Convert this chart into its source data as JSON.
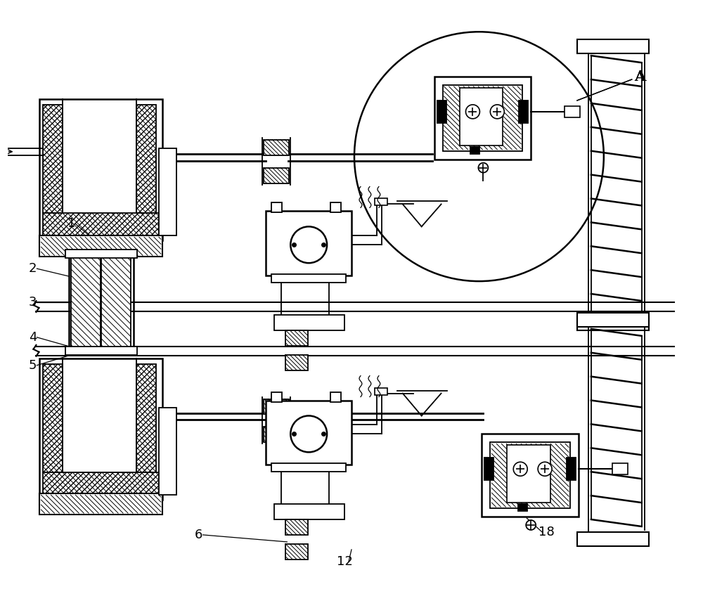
{
  "bg_color": "#ffffff",
  "line_color": "#000000",
  "label_fontsize": 13
}
